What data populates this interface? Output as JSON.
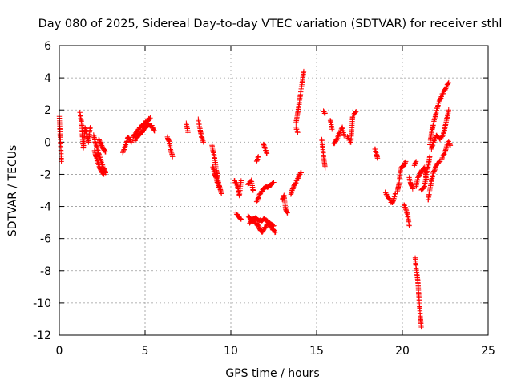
{
  "chart_data": {
    "type": "scatter",
    "title": "Day 080 of 2025, Sidereal Day-to-day VTEC variation (SDTVAR) for receiver sthl",
    "xlabel": "GPS time / hours",
    "ylabel": "SDTVAR / TECUs",
    "xlim": [
      0,
      25
    ],
    "ylim": [
      -12,
      6
    ],
    "xticks": [
      0,
      5,
      10,
      15,
      20,
      25
    ],
    "yticks": [
      -12,
      -10,
      -8,
      -6,
      -4,
      -2,
      0,
      2,
      4,
      6
    ],
    "grid": true,
    "marker": "plus",
    "color": "#ff0000",
    "segments": [
      [
        [
          0.0,
          1.6
        ],
        [
          0.05,
          0.4
        ],
        [
          0.1,
          -0.6
        ],
        [
          0.12,
          -1.2
        ]
      ],
      [
        [
          1.2,
          1.8
        ],
        [
          1.3,
          1.2
        ],
        [
          1.35,
          0.3
        ],
        [
          1.4,
          -0.4
        ],
        [
          1.5,
          0.9
        ],
        [
          1.7,
          0.0
        ],
        [
          1.8,
          0.9
        ]
      ],
      [
        [
          2.0,
          0.4
        ],
        [
          2.1,
          0.0
        ],
        [
          2.3,
          -0.7
        ],
        [
          2.5,
          -1.4
        ],
        [
          2.7,
          -1.9
        ]
      ],
      [
        [
          2.05,
          -0.5
        ],
        [
          2.2,
          -1.1
        ],
        [
          2.4,
          -1.7
        ],
        [
          2.6,
          -2.0
        ]
      ],
      [
        [
          2.3,
          0.2
        ],
        [
          2.5,
          -0.3
        ],
        [
          2.7,
          -0.6
        ]
      ],
      [
        [
          3.7,
          -0.6
        ],
        [
          3.9,
          -0.1
        ],
        [
          4.0,
          0.3
        ],
        [
          4.2,
          0.0
        ]
      ],
      [
        [
          4.3,
          0.3
        ],
        [
          4.5,
          0.6
        ],
        [
          4.7,
          0.9
        ],
        [
          4.9,
          1.1
        ],
        [
          5.1,
          1.3
        ],
        [
          5.3,
          1.5
        ]
      ],
      [
        [
          4.4,
          0.1
        ],
        [
          4.6,
          0.4
        ],
        [
          4.8,
          0.6
        ],
        [
          5.0,
          0.9
        ],
        [
          5.2,
          1.1
        ],
        [
          5.4,
          1.0
        ],
        [
          5.55,
          0.7
        ]
      ],
      [
        [
          6.3,
          0.3
        ],
        [
          6.4,
          0.0
        ],
        [
          6.5,
          -0.5
        ],
        [
          6.6,
          -0.9
        ]
      ],
      [
        [
          7.4,
          1.2
        ],
        [
          7.5,
          0.6
        ]
      ],
      [
        [
          8.1,
          1.4
        ],
        [
          8.2,
          0.8
        ],
        [
          8.3,
          0.3
        ],
        [
          8.4,
          0.0
        ]
      ],
      [
        [
          8.9,
          -0.2
        ],
        [
          9.0,
          -0.7
        ],
        [
          9.1,
          -1.3
        ],
        [
          9.2,
          -2.0
        ],
        [
          9.3,
          -2.6
        ],
        [
          9.45,
          -3.2
        ]
      ],
      [
        [
          8.95,
          -1.5
        ],
        [
          9.1,
          -2.1
        ],
        [
          9.3,
          -2.8
        ]
      ],
      [
        [
          10.2,
          -2.4
        ],
        [
          10.35,
          -2.6
        ],
        [
          10.5,
          -3.3
        ],
        [
          10.6,
          -2.4
        ]
      ],
      [
        [
          10.3,
          -4.4
        ],
        [
          10.6,
          -4.8
        ]
      ],
      [
        [
          11.0,
          -2.6
        ],
        [
          11.2,
          -2.4
        ],
        [
          11.3,
          -3.0
        ]
      ],
      [
        [
          11.5,
          -1.2
        ],
        [
          11.6,
          -0.9
        ]
      ],
      [
        [
          11.9,
          -0.1
        ],
        [
          12.0,
          -0.4
        ],
        [
          12.1,
          -0.7
        ]
      ],
      [
        [
          11.5,
          -3.7
        ],
        [
          11.7,
          -3.2
        ],
        [
          11.9,
          -2.9
        ],
        [
          12.1,
          -2.8
        ],
        [
          12.3,
          -2.7
        ],
        [
          12.5,
          -2.5
        ]
      ],
      [
        [
          11.0,
          -4.6
        ],
        [
          11.3,
          -4.9
        ],
        [
          11.6,
          -5.2
        ],
        [
          11.8,
          -5.6
        ],
        [
          12.0,
          -5.3
        ],
        [
          12.2,
          -5.0
        ],
        [
          12.4,
          -5.4
        ],
        [
          12.6,
          -5.6
        ]
      ],
      [
        [
          11.1,
          -5.0
        ],
        [
          11.4,
          -4.7
        ],
        [
          11.7,
          -4.9
        ],
        [
          12.0,
          -4.8
        ],
        [
          12.3,
          -5.1
        ],
        [
          12.5,
          -5.2
        ]
      ],
      [
        [
          13.0,
          -3.6
        ],
        [
          13.1,
          -3.3
        ],
        [
          13.2,
          -4.2
        ],
        [
          13.3,
          -4.4
        ]
      ],
      [
        [
          13.5,
          -3.2
        ],
        [
          13.6,
          -2.9
        ],
        [
          13.8,
          -2.5
        ],
        [
          14.0,
          -2.0
        ],
        [
          14.1,
          -1.9
        ]
      ],
      [
        [
          13.8,
          1.2
        ],
        [
          13.9,
          1.8
        ],
        [
          14.0,
          2.5
        ],
        [
          14.1,
          3.3
        ],
        [
          14.2,
          4.0
        ],
        [
          14.25,
          4.4
        ]
      ],
      [
        [
          13.8,
          0.9
        ],
        [
          13.9,
          0.6
        ]
      ],
      [
        [
          15.4,
          1.9
        ],
        [
          15.5,
          1.8
        ]
      ],
      [
        [
          15.3,
          0.2
        ],
        [
          15.4,
          -0.8
        ],
        [
          15.5,
          -1.6
        ]
      ],
      [
        [
          15.8,
          1.4
        ],
        [
          15.9,
          0.8
        ]
      ],
      [
        [
          16.0,
          -0.1
        ],
        [
          16.2,
          0.2
        ],
        [
          16.3,
          0.5
        ],
        [
          16.5,
          0.9
        ],
        [
          16.6,
          0.4
        ]
      ],
      [
        [
          16.8,
          0.3
        ],
        [
          17.0,
          0.0
        ],
        [
          17.1,
          1.6
        ],
        [
          17.3,
          1.9
        ]
      ],
      [
        [
          18.4,
          -0.4
        ],
        [
          18.5,
          -0.8
        ],
        [
          18.55,
          -1.0
        ]
      ],
      [
        [
          19.0,
          -3.1
        ],
        [
          19.2,
          -3.5
        ],
        [
          19.4,
          -3.8
        ],
        [
          19.6,
          -3.2
        ]
      ],
      [
        [
          19.7,
          -3.1
        ],
        [
          19.8,
          -2.6
        ],
        [
          19.9,
          -1.6
        ],
        [
          20.1,
          -1.4
        ],
        [
          20.2,
          -1.2
        ]
      ],
      [
        [
          20.1,
          -3.9
        ],
        [
          20.3,
          -4.5
        ],
        [
          20.4,
          -5.2
        ]
      ],
      [
        [
          20.4,
          -2.2
        ],
        [
          20.5,
          -2.6
        ],
        [
          20.6,
          -2.9
        ]
      ],
      [
        [
          20.7,
          -1.4
        ],
        [
          20.8,
          -1.2
        ]
      ],
      [
        [
          20.75,
          -7.2
        ],
        [
          20.8,
          -7.8
        ],
        [
          20.9,
          -8.6
        ],
        [
          20.95,
          -9.4
        ],
        [
          21.0,
          -10.2
        ],
        [
          21.05,
          -10.9
        ],
        [
          21.1,
          -11.5
        ]
      ],
      [
        [
          20.8,
          -2.8
        ],
        [
          20.9,
          -2.2
        ],
        [
          21.1,
          -1.8
        ],
        [
          21.3,
          -1.6
        ],
        [
          21.4,
          -2.3
        ]
      ],
      [
        [
          21.5,
          -3.6
        ],
        [
          21.6,
          -3.0
        ],
        [
          21.7,
          -2.4
        ],
        [
          21.8,
          -1.9
        ],
        [
          22.0,
          -1.4
        ],
        [
          22.2,
          -1.2
        ]
      ],
      [
        [
          21.6,
          -0.2
        ],
        [
          21.7,
          0.6
        ],
        [
          21.8,
          1.1
        ],
        [
          21.9,
          1.5
        ],
        [
          22.0,
          2.0
        ],
        [
          22.1,
          2.4
        ],
        [
          22.3,
          2.9
        ],
        [
          22.5,
          3.3
        ],
        [
          22.7,
          3.7
        ]
      ],
      [
        [
          21.7,
          -0.4
        ],
        [
          21.85,
          0.1
        ],
        [
          22.0,
          0.4
        ],
        [
          22.2,
          0.2
        ],
        [
          22.4,
          0.5
        ],
        [
          22.5,
          1.0
        ],
        [
          22.6,
          1.5
        ],
        [
          22.7,
          2.0
        ]
      ],
      [
        [
          22.3,
          -1.0
        ],
        [
          22.5,
          -0.6
        ],
        [
          22.6,
          -0.2
        ],
        [
          22.7,
          0.0
        ],
        [
          22.8,
          -0.2
        ]
      ],
      [
        [
          21.1,
          -3.0
        ],
        [
          21.3,
          -2.7
        ],
        [
          21.4,
          -1.9
        ],
        [
          21.5,
          -1.5
        ],
        [
          21.6,
          -0.9
        ]
      ]
    ]
  }
}
